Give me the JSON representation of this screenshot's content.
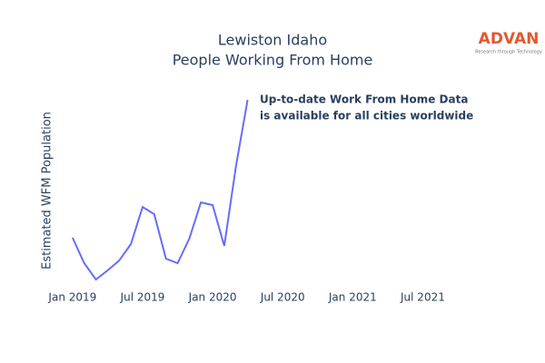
{
  "chart_data": {
    "type": "line",
    "title": [
      "Lewiston Idaho",
      "People Working From Home"
    ],
    "y_label": "Estimated WFM Population",
    "annotation": [
      "Up-to-date Work From Home Data",
      "is available for all cities worldwide"
    ],
    "logo": {
      "name": "ADVAN",
      "tagline": "Research through Technology"
    },
    "x": [
      "2019-01",
      "2019-02",
      "2019-03",
      "2019-04",
      "2019-05",
      "2019-06",
      "2019-07",
      "2019-08",
      "2019-09",
      "2019-10",
      "2019-11",
      "2019-12",
      "2020-01",
      "2020-02",
      "2020-03",
      "2020-04"
    ],
    "series": [
      {
        "color": "#636efa",
        "values": [
          48,
          20,
          2,
          12,
          23,
          41,
          82,
          74,
          25,
          20,
          47,
          87,
          84,
          39,
          127,
          200
        ]
      }
    ],
    "xlim": [
      "2018-12",
      "2021-10"
    ],
    "xticks": [
      {
        "value": "2019-01",
        "label": "Jan 2019"
      },
      {
        "value": "2019-07",
        "label": "Jul 2019"
      },
      {
        "value": "2020-01",
        "label": "Jan 2020"
      },
      {
        "value": "2020-07",
        "label": "Jul 2020"
      },
      {
        "value": "2021-01",
        "label": "Jan 2021"
      },
      {
        "value": "2021-07",
        "label": "Jul 2021"
      }
    ],
    "ylim": [
      0,
      200
    ]
  }
}
